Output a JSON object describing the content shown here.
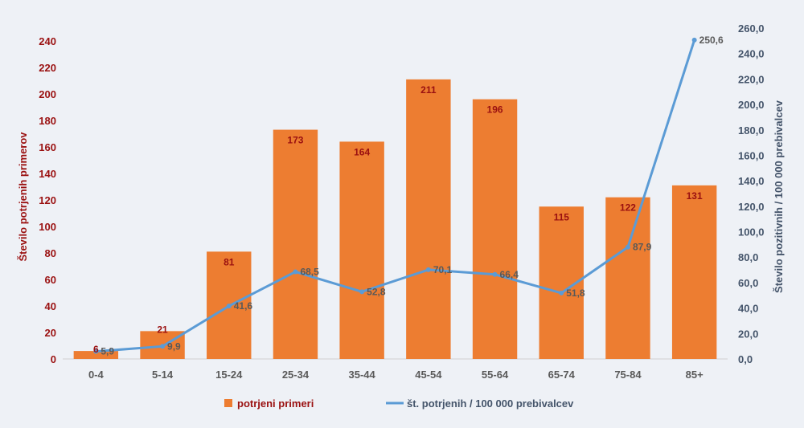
{
  "chart_data": {
    "type": "bar",
    "categories": [
      "0-4",
      "5-14",
      "15-24",
      "25-34",
      "35-44",
      "45-54",
      "55-64",
      "65-74",
      "75-84",
      "85+"
    ],
    "series": [
      {
        "name": "potrjeni primeri",
        "type": "bar",
        "axis": "left",
        "values": [
          6,
          21,
          81,
          173,
          164,
          211,
          196,
          115,
          122,
          131
        ],
        "labels": [
          "6",
          "21",
          "81",
          "173",
          "164",
          "211",
          "196",
          "115",
          "122",
          "131"
        ]
      },
      {
        "name": "št. potrjenih / 100 000 prebivalcev",
        "type": "line",
        "axis": "right",
        "values": [
          5.9,
          9.9,
          41.6,
          68.5,
          52.8,
          70.1,
          66.4,
          51.8,
          87.9,
          250.6
        ],
        "labels": [
          "5,9",
          "9,9",
          "41,6",
          "68,5",
          "52,8",
          "70,1",
          "66,4",
          "51,8",
          "87,9",
          "250,6"
        ]
      }
    ],
    "ylabel": "Število potrjenih primerov",
    "y2label": "Število pozitivnih / 100 000 prebivalcev",
    "ylim": [
      0,
      240
    ],
    "y2lim": [
      0,
      260
    ],
    "yticks": [
      "0",
      "20",
      "40",
      "60",
      "80",
      "100",
      "120",
      "140",
      "160",
      "180",
      "200",
      "220",
      "240"
    ],
    "y2ticks": [
      "0,0",
      "20,0",
      "40,0",
      "60,0",
      "80,0",
      "100,0",
      "120,0",
      "140,0",
      "160,0",
      "180,0",
      "200,0",
      "220,0",
      "240,0",
      "260,0"
    ],
    "grid": false,
    "legend": "bottom",
    "colors": {
      "bar": "#ed7d31",
      "line": "#5b9bd5",
      "left_axis": "#9a1010",
      "right_axis": "#44546a",
      "category_axis": "#595959",
      "bar_label": "#9a1010",
      "line_label": "#595959"
    }
  }
}
